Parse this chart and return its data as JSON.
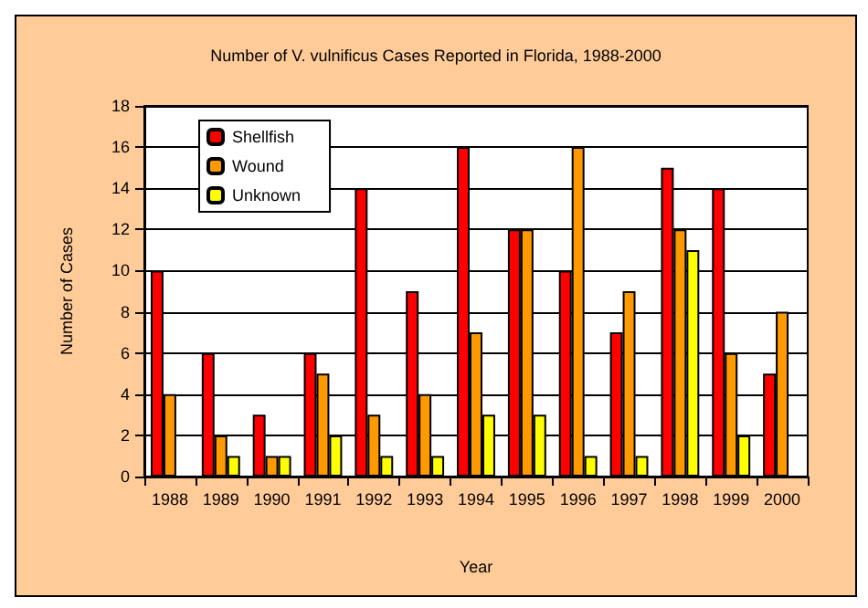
{
  "chart_data": {
    "type": "bar",
    "title": "Number of V. vulnificus Cases Reported in Florida, 1988-2000",
    "xlabel": "Year",
    "ylabel": "Number of Cases",
    "categories": [
      "1988",
      "1989",
      "1990",
      "1991",
      "1992",
      "1993",
      "1994",
      "1995",
      "1996",
      "1997",
      "1998",
      "1999",
      "2000"
    ],
    "series": [
      {
        "name": "Shellfish",
        "color": "#ff0000",
        "values": [
          10,
          6,
          3,
          6,
          14,
          9,
          16,
          12,
          10,
          7,
          15,
          14,
          5
        ]
      },
      {
        "name": "Wound",
        "color": "#ff9900",
        "values": [
          4,
          2,
          1,
          5,
          3,
          4,
          7,
          12,
          16,
          9,
          12,
          6,
          8
        ]
      },
      {
        "name": "Unknown",
        "color": "#ffff00",
        "values": [
          null,
          1,
          1,
          2,
          1,
          1,
          3,
          3,
          1,
          1,
          11,
          2,
          null
        ]
      }
    ],
    "ylim": [
      0,
      18
    ],
    "yticks": [
      0,
      2,
      4,
      6,
      8,
      10,
      12,
      14,
      16,
      18
    ],
    "grid": "y",
    "legend": "top left"
  }
}
